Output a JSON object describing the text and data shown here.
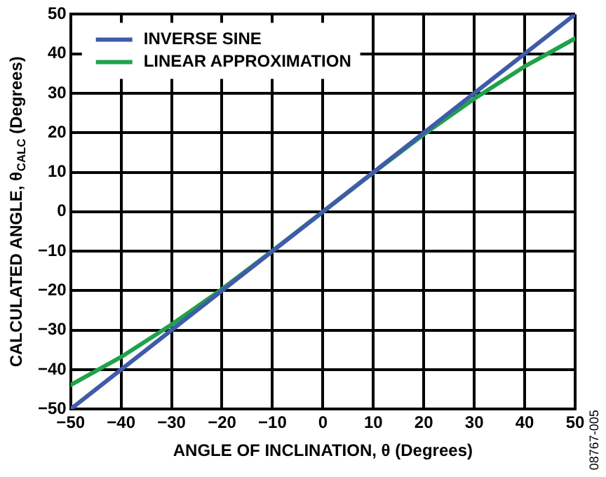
{
  "chart_data": {
    "type": "line",
    "xlabel": "ANGLE OF INCLINATION, θ (Degrees)",
    "ylabel": "CALCULATED ANGLE, θ$_{CALC}$ (Degrees)",
    "x": [
      -50,
      -40,
      -30,
      -20,
      -10,
      0,
      10,
      20,
      30,
      40,
      50
    ],
    "series": [
      {
        "name": "INVERSE SINE",
        "color": "#3f5ba9",
        "values": [
          -50,
          -40,
          -30,
          -20,
          -10,
          0,
          10,
          20,
          30,
          40,
          50
        ]
      },
      {
        "name": "LINEAR APPROXIMATION",
        "color": "#1fa24a",
        "values": [
          -43.9,
          -36.8,
          -28.6,
          -19.6,
          -9.9,
          0,
          9.9,
          19.6,
          28.6,
          36.8,
          43.9
        ]
      }
    ],
    "xlim": [
      -50,
      50
    ],
    "ylim": [
      -50,
      50
    ],
    "xticks": [
      {
        "value": -50,
        "label": "−50"
      },
      {
        "value": -40,
        "label": "−40"
      },
      {
        "value": -30,
        "label": "−30"
      },
      {
        "value": -20,
        "label": "−20"
      },
      {
        "value": -10,
        "label": "−10"
      },
      0,
      10,
      20,
      30,
      40,
      50
    ],
    "yticks": [
      {
        "value": -50,
        "label": "−50"
      },
      {
        "value": -40,
        "label": "−40"
      },
      {
        "value": -30,
        "label": "−30"
      },
      {
        "value": -20,
        "label": "−20"
      },
      {
        "value": -10,
        "label": "−10"
      },
      0,
      10,
      20,
      30,
      40,
      50
    ],
    "grid": true,
    "legend": "top left",
    "marker": "none",
    "line_style": "solid",
    "annotations": [
      "08767-005"
    ]
  }
}
